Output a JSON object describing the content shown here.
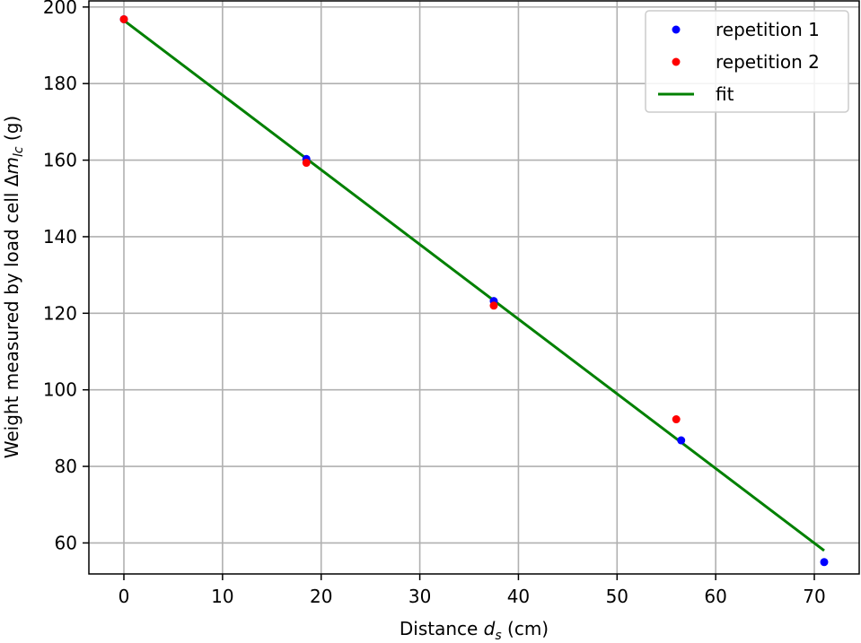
{
  "chart_data": {
    "type": "scatter",
    "title": "",
    "xlabel": "Distance ds (cm)",
    "xlabel_parts": {
      "prefix": "Distance ",
      "symbol": "d",
      "subscript": "s",
      "suffix": " (cm)"
    },
    "ylabel": "Weight measured by load cell Δmlc (g)",
    "ylabel_parts": {
      "prefix": "Weight measured by load cell Δ",
      "symbol": "m",
      "subscript": "lc",
      "suffix": " (g)"
    },
    "xlim": [
      -3.55,
      74.55
    ],
    "ylim": [
      51.9,
      201.6
    ],
    "xticks": [
      0,
      10,
      20,
      30,
      40,
      50,
      60,
      70
    ],
    "yticks": [
      60,
      80,
      100,
      120,
      140,
      160,
      180,
      200
    ],
    "grid": true,
    "legend_position": "top-right",
    "series": [
      {
        "name": "repetition 1",
        "kind": "points",
        "color": "#0000ff",
        "points": [
          [
            0,
            196.8
          ],
          [
            18.5,
            160.3
          ],
          [
            37.5,
            123.2
          ],
          [
            56.5,
            86.8
          ],
          [
            71.0,
            55.0
          ]
        ]
      },
      {
        "name": "repetition 2",
        "kind": "points",
        "color": "#ff0000",
        "points": [
          [
            0,
            196.8
          ],
          [
            18.5,
            159.3
          ],
          [
            37.5,
            122.0
          ],
          [
            56.0,
            92.3
          ]
        ]
      },
      {
        "name": "fit",
        "kind": "line",
        "color": "#008000",
        "points": [
          [
            0,
            196.5
          ],
          [
            71.0,
            58.0
          ]
        ]
      }
    ]
  }
}
